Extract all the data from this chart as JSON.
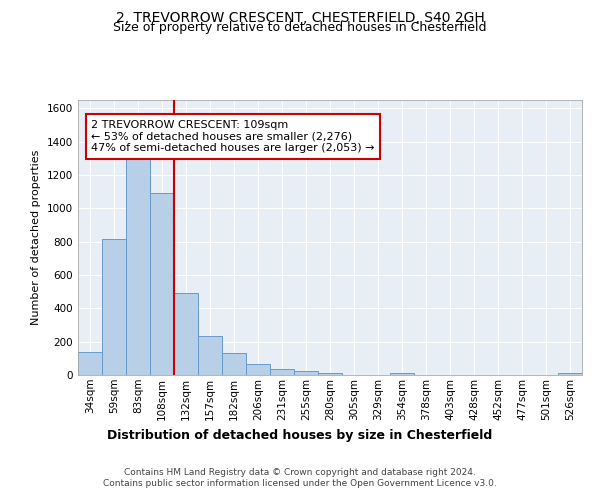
{
  "title1": "2, TREVORROW CRESCENT, CHESTERFIELD, S40 2GH",
  "title2": "Size of property relative to detached houses in Chesterfield",
  "xlabel": "Distribution of detached houses by size in Chesterfield",
  "ylabel": "Number of detached properties",
  "bar_labels": [
    "34sqm",
    "59sqm",
    "83sqm",
    "108sqm",
    "132sqm",
    "157sqm",
    "182sqm",
    "206sqm",
    "231sqm",
    "255sqm",
    "280sqm",
    "305sqm",
    "329sqm",
    "354sqm",
    "378sqm",
    "403sqm",
    "428sqm",
    "452sqm",
    "477sqm",
    "501sqm",
    "526sqm"
  ],
  "bar_values": [
    140,
    815,
    1295,
    1090,
    495,
    232,
    130,
    65,
    38,
    27,
    12,
    0,
    0,
    14,
    0,
    0,
    0,
    0,
    0,
    0,
    12
  ],
  "bar_color": "#b8cfe8",
  "bar_edge_color": "#6699cc",
  "background_color": "#e8eef6",
  "grid_color": "#d0d8e8",
  "vline_color": "#cc0000",
  "annotation_text": "2 TREVORROW CRESCENT: 109sqm\n← 53% of detached houses are smaller (2,276)\n47% of semi-detached houses are larger (2,053) →",
  "annotation_box_color": "#ffffff",
  "annotation_box_edge": "#cc0000",
  "ylim": [
    0,
    1650
  ],
  "yticks": [
    0,
    200,
    400,
    600,
    800,
    1000,
    1200,
    1400,
    1600
  ],
  "footer": "Contains HM Land Registry data © Crown copyright and database right 2024.\nContains public sector information licensed under the Open Government Licence v3.0.",
  "title1_fontsize": 10,
  "title2_fontsize": 9,
  "xlabel_fontsize": 9,
  "ylabel_fontsize": 8,
  "tick_fontsize": 7.5,
  "annotation_fontsize": 8,
  "footer_fontsize": 6.5
}
